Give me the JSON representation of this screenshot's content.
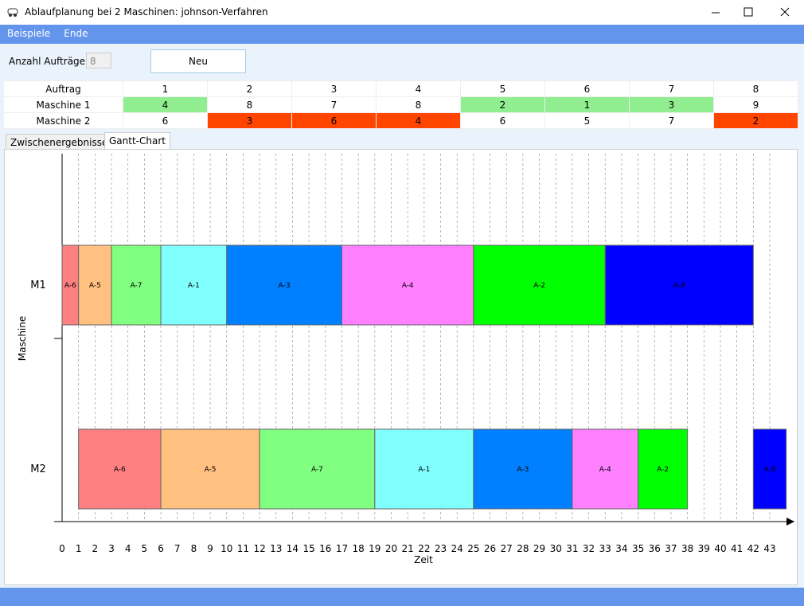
{
  "window": {
    "title": "Ablaufplanung bei 2 Maschinen: johnson-Verfahren"
  },
  "menu": [
    "Beispiele",
    "Ende"
  ],
  "form": {
    "count_label": "Anzahl Aufträge:",
    "count_value": 8,
    "button": "Neu"
  },
  "table": {
    "header": [
      "Auftrag",
      1,
      2,
      3,
      4,
      5,
      6,
      7,
      8
    ],
    "rows": [
      [
        "Maschine 1",
        4,
        8,
        7,
        8,
        2,
        1,
        3,
        9
      ],
      [
        "Maschine 2",
        6,
        3,
        6,
        4,
        6,
        5,
        7,
        2
      ]
    ],
    "colors": {
      "first_group": "#90ee90",
      "second_group": "#ff4500"
    }
  },
  "tabs": [
    "Zwischenergebnisse",
    "Gantt-Chart"
  ],
  "chart_data": {
    "type": "gantt",
    "xlabel": "Zeit",
    "ylabel": "Maschine",
    "categories": [
      "M1",
      "M2"
    ],
    "tasks": [
      [
        {
          "label": "A-6",
          "color": "#ff8080",
          "start": 0,
          "end": 1
        },
        {
          "label": "A-5",
          "color": "#ffc080",
          "start": 1,
          "end": 3
        },
        {
          "label": "A-7",
          "color": "#80ff80",
          "start": 3,
          "end": 6
        },
        {
          "label": "A-1",
          "color": "#80ffff",
          "start": 6,
          "end": 10
        },
        {
          "label": "A-3",
          "color": "#0080ff",
          "start": 10,
          "end": 17
        },
        {
          "label": "A-4",
          "color": "#ff80ff",
          "start": 17,
          "end": 25
        },
        {
          "label": "A-2",
          "color": "#00ff00",
          "start": 25,
          "end": 33
        },
        {
          "label": "A-8",
          "color": "#0000ff",
          "start": 33,
          "end": 42
        }
      ],
      [
        {
          "label": "A-6",
          "color": "#ff8080",
          "start": 1,
          "end": 6
        },
        {
          "label": "A-5",
          "color": "#ffc080",
          "start": 6,
          "end": 12
        },
        {
          "label": "A-7",
          "color": "#80ff80",
          "start": 12,
          "end": 19
        },
        {
          "label": "A-1",
          "color": "#80ffff",
          "start": 19,
          "end": 25
        },
        {
          "label": "A-3",
          "color": "#0080ff",
          "start": 25,
          "end": 31
        },
        {
          "label": "A-4",
          "color": "#ff80ff",
          "start": 31,
          "end": 35
        },
        {
          "label": "A-2",
          "color": "#00ff00",
          "start": 35,
          "end": 38
        },
        {
          "label": "A-8",
          "color": "#0000ff",
          "start": 42,
          "end": 44
        }
      ]
    ],
    "xlim": [
      0,
      44.5
    ],
    "xticks": [
      0,
      1,
      2,
      3,
      4,
      5,
      6,
      7,
      8,
      9,
      10,
      11,
      12,
      13,
      14,
      15,
      16,
      17,
      18,
      19,
      20,
      21,
      22,
      23,
      24,
      25,
      26,
      27,
      28,
      29,
      30,
      31,
      32,
      33,
      34,
      35,
      36,
      37,
      38,
      39,
      40,
      41,
      42,
      43
    ],
    "grid": true
  }
}
